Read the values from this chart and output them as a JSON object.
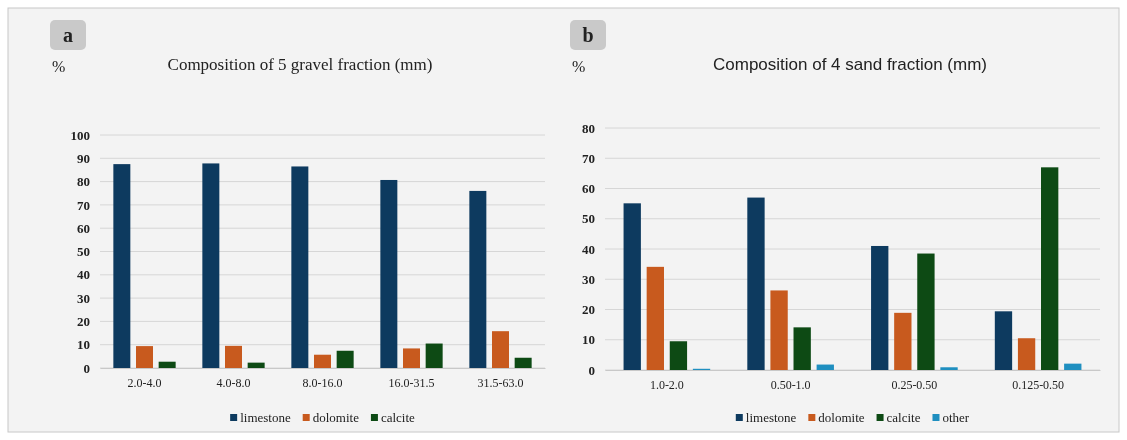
{
  "chart_data": [
    {
      "type": "bar",
      "title": "Composition of 5 gravel fraction (mm)",
      "ylabel": "%",
      "annotations": [
        "a"
      ],
      "categories": [
        "2.0-4.0",
        "4.0-8.0",
        "8.0-16.0",
        "16.0-31.5",
        "31.5-63.0"
      ],
      "series": [
        {
          "name": "limestone",
          "color": "#0d3a5f",
          "values": [
            87.5,
            87.8,
            86.5,
            80.7,
            76
          ]
        },
        {
          "name": "dolomite",
          "color": "#c85a1e",
          "values": [
            9.4,
            9.5,
            5.7,
            8.4,
            15.8
          ]
        },
        {
          "name": "calcite",
          "color": "#0d4a14",
          "values": [
            2.7,
            2.3,
            7.4,
            10.5,
            4.4
          ]
        }
      ],
      "ylim": [
        0,
        100
      ],
      "yticks": [
        0,
        10,
        20,
        30,
        40,
        50,
        60,
        70,
        80,
        90,
        100
      ],
      "grid": "y",
      "legend": "bottom"
    },
    {
      "type": "bar",
      "title": "Composition of 4 sand fraction (mm)",
      "ylabel": "%",
      "annotations": [
        "b"
      ],
      "categories": [
        "1.0-2.0",
        "0.50-1.0",
        "0.25-0.50",
        "0.125-0.50"
      ],
      "series": [
        {
          "name": "limestone",
          "color": "#0d3a5f",
          "values": [
            55.1,
            57,
            41,
            19.4
          ]
        },
        {
          "name": "dolomite",
          "color": "#c85a1e",
          "values": [
            34.1,
            26.3,
            18.9,
            10.5
          ]
        },
        {
          "name": "calcite",
          "color": "#0d4a14",
          "values": [
            9.5,
            14.1,
            38.5,
            67
          ]
        },
        {
          "name": "other",
          "color": "#1f8fc0",
          "values": [
            0.4,
            1.8,
            0.9,
            2.1
          ]
        }
      ],
      "ylim": [
        0,
        80
      ],
      "yticks": [
        0,
        10,
        20,
        30,
        40,
        50,
        60,
        70,
        80
      ],
      "grid": "y",
      "legend": "bottom"
    }
  ]
}
